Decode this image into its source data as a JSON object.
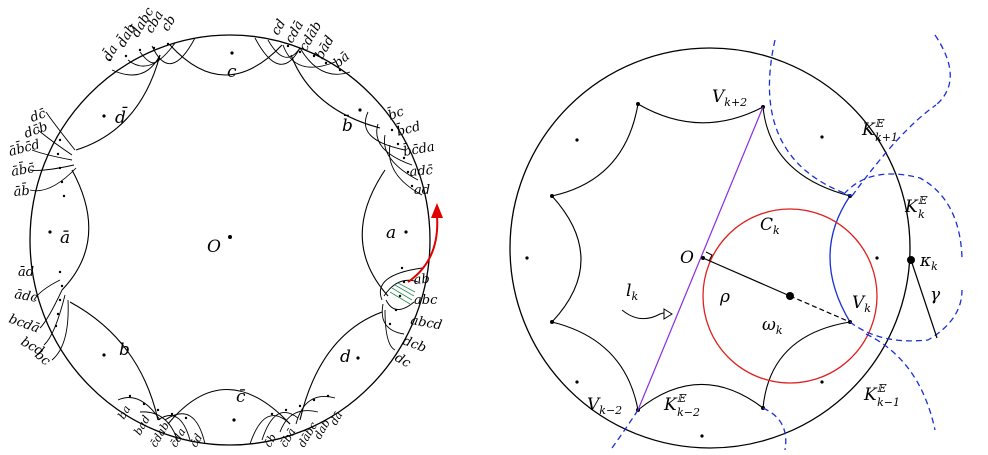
{
  "left": {
    "center_label": "O",
    "vertex_labels": {
      "a": "a",
      "b": "b",
      "c": "c",
      "d": "d",
      "abar": "ā",
      "bbar": "b̄",
      "cbar": "c̄",
      "dbar": "d̄"
    },
    "words_top": [
      "d̄a",
      "d̄ab",
      "d̄abc",
      "cba",
      "cb",
      "cd",
      "cdā",
      "cdāb",
      "bād",
      "bā"
    ],
    "words_upper_left": [
      "dc̄",
      "dc̄b",
      "āb̄c̄d",
      "āb̄c̄",
      "āb̄"
    ],
    "words_upper_right": [
      "b̄c",
      "b̄cd",
      "b̄c̄da",
      "adc̄",
      "ad"
    ],
    "words_lower_left": [
      "ād",
      "ādc",
      "bcdā",
      "bcd",
      "bc"
    ],
    "words_lower_right": [
      "ab",
      "abc",
      "abcd",
      "dcb",
      "dc"
    ],
    "words_bottom": [
      "ba",
      "bad",
      "c̄dab",
      "c̄da",
      "c̄d",
      "c̄b",
      "c̄bā",
      "dābc",
      "dab",
      "dā"
    ]
  },
  "right": {
    "labels": {
      "O": "O",
      "rho": "ρ",
      "omega": "ω",
      "omega_sub": "k",
      "Ck": "C",
      "Ck_sub": "k",
      "lk": "l",
      "lk_sub": "k",
      "Vk": "V",
      "Vk_sub": "k",
      "Vk2": "V",
      "Vk2_sub": "k+2",
      "Vkm2": "V",
      "Vkm2_sub": "k−2",
      "kappa": "κ",
      "kappa_sub": "k",
      "gamma": "γ",
      "K": "K",
      "K_sup": "𝔼",
      "K1_sub": "k+1",
      "K0_sub": "k",
      "Km1_sub": "k−1",
      "Km2_sub": "k−2"
    }
  },
  "colors": {
    "ink": "#000000",
    "red_arrow": "#e00000",
    "circle_red": "#e02020",
    "dashed_blue": "#1a2fd6",
    "line_purple": "#8a2be2",
    "green_hatch": "#2e8b57"
  }
}
